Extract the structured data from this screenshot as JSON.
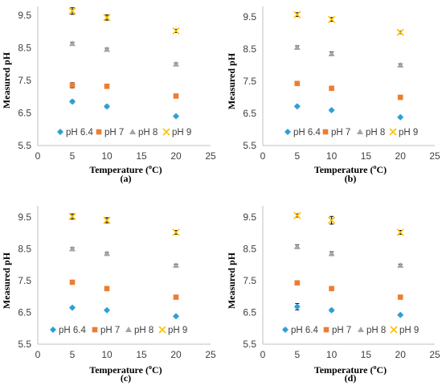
{
  "colors": {
    "pH 6.4": "#2e9fd8",
    "pH 7": "#ed7d31",
    "pH 8": "#a5a5a5",
    "pH 9": "#ffc000",
    "axis": "#bfbfbf",
    "errorbar": "#000000"
  },
  "legend": {
    "items": [
      {
        "name": "pH 6.4",
        "marker": "diamond"
      },
      {
        "name": "pH 7",
        "marker": "square"
      },
      {
        "name": "pH 8",
        "marker": "triangle"
      },
      {
        "name": "pH 9",
        "marker": "x"
      }
    ]
  },
  "chart_data": [
    {
      "type": "scatter",
      "panel_label": "(a)",
      "xlabel": "Temperature (",
      "xlabel_sup": "o",
      "xlabel_end": "C)",
      "ylabel": "Measured pH",
      "xlim": [
        0,
        25
      ],
      "ylim": [
        5.5,
        10
      ],
      "xticks": [
        0,
        5,
        10,
        15,
        20,
        25
      ],
      "yticks": [
        5.5,
        6.5,
        7.5,
        8.5,
        9.5
      ],
      "x": [
        5,
        10,
        20
      ],
      "series": [
        {
          "name": "pH 6.4",
          "values": [
            6.85,
            6.7,
            6.4
          ],
          "err": [
            0.04,
            0.04,
            0.03
          ]
        },
        {
          "name": "pH 7",
          "values": [
            7.35,
            7.32,
            7.02
          ],
          "err": [
            0.08,
            0.03,
            0.03
          ]
        },
        {
          "name": "pH 8",
          "values": [
            8.63,
            8.45,
            8.0
          ],
          "err": [
            0.04,
            0.04,
            0.04
          ]
        },
        {
          "name": "pH 9",
          "values": [
            9.63,
            9.43,
            9.02
          ],
          "err": [
            0.1,
            0.08,
            0.05
          ]
        }
      ]
    },
    {
      "type": "scatter",
      "panel_label": "(b)",
      "xlabel": "Temperature (",
      "xlabel_sup": "o",
      "xlabel_end": "C)",
      "ylabel": "Measured pH",
      "xlim": [
        0,
        25
      ],
      "ylim": [
        5.5,
        10
      ],
      "xticks": [
        0,
        5,
        10,
        15,
        20,
        25
      ],
      "yticks": [
        5.5,
        6.5,
        7.5,
        8.5,
        9.5
      ],
      "x": [
        5,
        10,
        20
      ],
      "series": [
        {
          "name": "pH 6.4",
          "values": [
            6.72,
            6.6,
            6.38
          ],
          "err": [
            0.03,
            0.03,
            0.03
          ]
        },
        {
          "name": "pH 7",
          "values": [
            7.43,
            7.28,
            7.0
          ],
          "err": [
            0.03,
            0.03,
            0.03
          ]
        },
        {
          "name": "pH 8",
          "values": [
            8.55,
            8.35,
            8.0
          ],
          "err": [
            0.05,
            0.06,
            0.04
          ]
        },
        {
          "name": "pH 9",
          "values": [
            9.57,
            9.42,
            9.02
          ],
          "err": [
            0.06,
            0.06,
            0.04
          ]
        }
      ]
    },
    {
      "type": "scatter",
      "panel_label": "(c)",
      "xlabel": "Temperature (",
      "xlabel_sup": "o",
      "xlabel_end": "C)",
      "ylabel": "Measured pH",
      "xlim": [
        0,
        25
      ],
      "ylim": [
        5.5,
        10
      ],
      "xticks": [
        0,
        5,
        10,
        15,
        20,
        25
      ],
      "yticks": [
        5.5,
        6.5,
        7.5,
        8.5,
        9.5
      ],
      "x": [
        5,
        10,
        20
      ],
      "series": [
        {
          "name": "pH 6.4",
          "values": [
            6.65,
            6.57,
            6.38
          ],
          "err": [
            0.03,
            0.03,
            0.03
          ]
        },
        {
          "name": "pH 7",
          "values": [
            7.45,
            7.25,
            6.98
          ],
          "err": [
            0.03,
            0.03,
            0.03
          ]
        },
        {
          "name": "pH 8",
          "values": [
            8.5,
            8.35,
            7.98
          ],
          "err": [
            0.04,
            0.04,
            0.04
          ]
        },
        {
          "name": "pH 9",
          "values": [
            9.52,
            9.4,
            9.02
          ],
          "err": [
            0.08,
            0.08,
            0.06
          ]
        }
      ]
    },
    {
      "type": "scatter",
      "panel_label": "(d)",
      "xlabel": "Temperature (",
      "xlabel_sup": "o",
      "xlabel_end": "C)",
      "ylabel": "Measured pH",
      "xlim": [
        0,
        25
      ],
      "ylim": [
        5.5,
        10
      ],
      "xticks": [
        0,
        5,
        10,
        15,
        20,
        25
      ],
      "yticks": [
        5.5,
        6.5,
        7.5,
        8.5,
        9.5
      ],
      "x": [
        5,
        10,
        20
      ],
      "series": [
        {
          "name": "pH 6.4",
          "values": [
            6.68,
            6.57,
            6.42
          ],
          "err": [
            0.1,
            0.04,
            0.03
          ]
        },
        {
          "name": "pH 7",
          "values": [
            7.43,
            7.25,
            6.98
          ],
          "err": [
            0.03,
            0.03,
            0.03
          ]
        },
        {
          "name": "pH 8",
          "values": [
            8.57,
            8.35,
            7.98
          ],
          "err": [
            0.06,
            0.06,
            0.04
          ]
        },
        {
          "name": "pH 9",
          "values": [
            9.55,
            9.4,
            9.02
          ],
          "err": [
            0.05,
            0.12,
            0.06
          ]
        }
      ]
    }
  ]
}
